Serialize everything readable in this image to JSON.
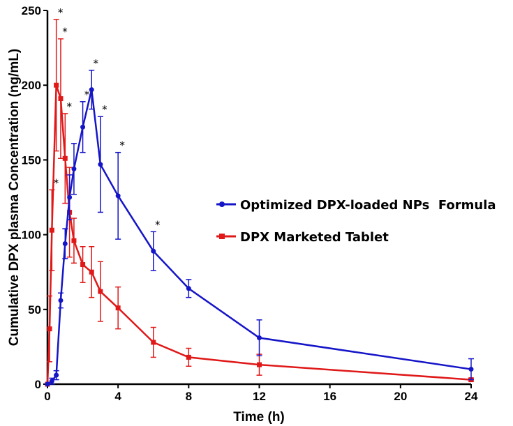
{
  "chart_data": {
    "type": "line",
    "title": "",
    "xlabel": "Time (h)",
    "ylabel": "Cumulative DPX plasma Concentration (ng/mL)",
    "xlim": [
      0,
      24
    ],
    "ylim": [
      0,
      250
    ],
    "xticks": [
      0,
      4,
      8,
      12,
      16,
      20,
      24
    ],
    "yticks": [
      0,
      50,
      100,
      150,
      200,
      250
    ],
    "grid": false,
    "legend_position": "right",
    "series": [
      {
        "name": "Optimized DPX-loaded NPs  Formula",
        "color": "#1515c8",
        "marker": "circle",
        "x": [
          0,
          0.25,
          0.5,
          0.75,
          1,
          1.25,
          1.5,
          2,
          2.5,
          3,
          4,
          6,
          8,
          12,
          24
        ],
        "y": [
          0,
          2,
          6,
          56,
          94,
          125,
          144,
          172,
          197,
          147,
          126,
          89,
          64,
          31,
          10
        ],
        "err": [
          0,
          2,
          3,
          5,
          10,
          15,
          17,
          17,
          13,
          32,
          29,
          13,
          6,
          12,
          7
        ],
        "significant": [
          false,
          false,
          false,
          false,
          false,
          false,
          false,
          true,
          true,
          true,
          true,
          true,
          false,
          false,
          false
        ]
      },
      {
        "name": "DPX Marketed Tablet",
        "color": "#e01818",
        "marker": "square",
        "x": [
          0,
          0.12,
          0.25,
          0.5,
          0.75,
          1,
          1.25,
          1.5,
          2,
          2.5,
          3,
          4,
          6,
          8,
          12,
          24
        ],
        "y": [
          0,
          37,
          103,
          200,
          191,
          151,
          115,
          96,
          80,
          75,
          62,
          51,
          28,
          18,
          13,
          3
        ],
        "err": [
          0,
          22,
          27,
          44,
          40,
          30,
          30,
          15,
          12,
          17,
          20,
          14,
          10,
          6,
          7,
          1
        ],
        "significant": [
          false,
          false,
          true,
          true,
          true,
          true,
          false,
          false,
          false,
          false,
          false,
          false,
          false,
          false,
          false,
          false
        ]
      }
    ],
    "annotation_symbol": "*"
  }
}
